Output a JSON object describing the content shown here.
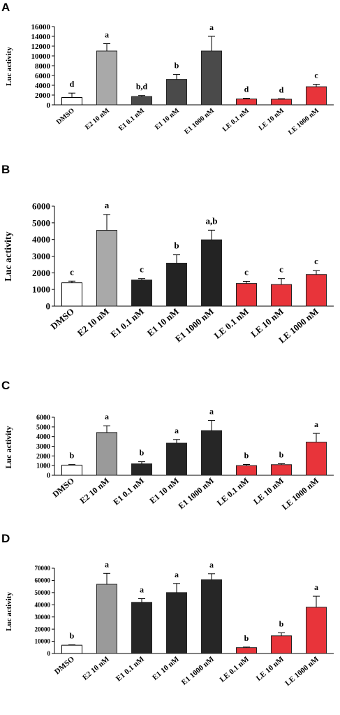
{
  "figure": {
    "background": "#ffffff"
  },
  "chart_data": [
    {
      "panel": "A",
      "type": "bar",
      "ylabel": "Luc activity",
      "ylim": [
        0,
        16000
      ],
      "yticks": [
        0,
        2000,
        4000,
        6000,
        8000,
        10000,
        12000,
        14000,
        16000
      ],
      "grid": false,
      "categories": [
        "DMSO",
        "E2 10 nM",
        "E1 0.1 nM",
        "E1 10 nM",
        "E1 1000 nM",
        "LE 0.1 nM",
        "LE 10 nM",
        "LE 1000 nM"
      ],
      "values": [
        1500,
        11000,
        1700,
        5200,
        11000,
        1200,
        1150,
        3700
      ],
      "errors": [
        900,
        1500,
        200,
        1000,
        3000,
        150,
        100,
        500
      ],
      "letters": [
        "d",
        "a",
        "b,d",
        "b",
        "a",
        "d",
        "d",
        "c"
      ],
      "colors": [
        "#ffffff",
        "#a9a9a9",
        "#4a4a4a",
        "#4a4a4a",
        "#4a4a4a",
        "#e8343a",
        "#e8343a",
        "#e8343a"
      ]
    },
    {
      "panel": "B",
      "type": "bar",
      "ylabel": "Luc activity",
      "ylim": [
        0,
        6000
      ],
      "yticks": [
        0,
        1000,
        2000,
        3000,
        4000,
        5000,
        6000
      ],
      "grid": false,
      "categories": [
        "DMSO",
        "E2 10 nM",
        "E1 0.1 nM",
        "E1 10 nM",
        "E1 1000 nM",
        "LE 0.1 nM",
        "LE 10 nM",
        "LE 1000 nM"
      ],
      "values": [
        1400,
        4550,
        1570,
        2580,
        3980,
        1360,
        1300,
        1900
      ],
      "errors": [
        100,
        950,
        80,
        500,
        580,
        130,
        350,
        230
      ],
      "letters": [
        "c",
        "a",
        "c",
        "b",
        "a,b",
        "c",
        "c",
        "c"
      ],
      "colors": [
        "#ffffff",
        "#a9a9a9",
        "#232323",
        "#232323",
        "#232323",
        "#e8343a",
        "#e8343a",
        "#e8343a"
      ]
    },
    {
      "panel": "C",
      "type": "bar",
      "ylabel": "Luc activity",
      "ylim": [
        0,
        6000
      ],
      "yticks": [
        0,
        1000,
        2000,
        3000,
        4000,
        5000,
        6000
      ],
      "grid": false,
      "categories": [
        "DMSO",
        "E2 10 nM",
        "E1 0.1 nM",
        "E1 10 nM",
        "E1 1000 nM",
        "LE 0.1 nM",
        "LE 10 nM",
        "LE 1000 nM"
      ],
      "values": [
        1050,
        4420,
        1180,
        3320,
        4620,
        1000,
        1100,
        3430
      ],
      "errors": [
        60,
        700,
        220,
        380,
        1050,
        120,
        100,
        900
      ],
      "letters": [
        "b",
        "a",
        "b",
        "a",
        "a",
        "b",
        "b",
        "a"
      ],
      "colors": [
        "#ffffff",
        "#9a9a9a",
        "#262626",
        "#262626",
        "#262626",
        "#e8343a",
        "#e8343a",
        "#e8343a"
      ]
    },
    {
      "panel": "D",
      "type": "bar",
      "ylabel": "Luc activity",
      "ylim": [
        0,
        70000
      ],
      "yticks": [
        0,
        10000,
        20000,
        30000,
        40000,
        50000,
        60000,
        70000
      ],
      "grid": false,
      "categories": [
        "DMSO",
        "E2 10 nM",
        "E1 0.1 nM",
        "E1 10 nM",
        "E1 1000 nM",
        "LE 0.1 nM",
        "LE 10 nM",
        "LE 1000 nM"
      ],
      "values": [
        6800,
        56800,
        42000,
        50000,
        60500,
        4800,
        14500,
        38000
      ],
      "errors": [
        300,
        9000,
        3000,
        7500,
        5000,
        500,
        2500,
        9000
      ],
      "letters": [
        "b",
        "a",
        "a",
        "a",
        "a",
        "b",
        "b",
        "a"
      ],
      "colors": [
        "#ffffff",
        "#9a9a9a",
        "#262626",
        "#262626",
        "#262626",
        "#e8343a",
        "#e8343a",
        "#e8343a"
      ]
    }
  ]
}
